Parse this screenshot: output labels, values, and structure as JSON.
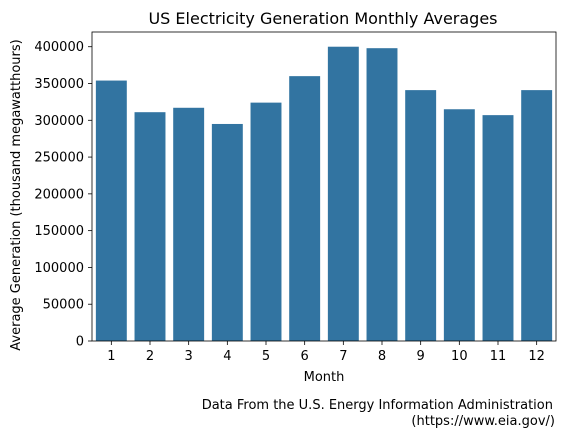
{
  "chart_data": {
    "type": "bar",
    "title": "US Electricity Generation Monthly Averages",
    "xlabel": "Month",
    "ylabel": "Average Generation (thousand megawatthours)",
    "categories": [
      "1",
      "2",
      "3",
      "4",
      "5",
      "6",
      "7",
      "8",
      "9",
      "10",
      "11",
      "12"
    ],
    "values": [
      354000,
      311000,
      317000,
      295000,
      324000,
      360000,
      400000,
      398000,
      341000,
      315000,
      307000,
      341000
    ],
    "ylim": [
      0,
      420000
    ],
    "yticks": [
      0,
      50000,
      100000,
      150000,
      200000,
      250000,
      300000,
      350000,
      400000
    ],
    "ytick_labels": [
      "0",
      "50000",
      "100000",
      "150000",
      "200000",
      "250000",
      "300000",
      "350000",
      "400000"
    ],
    "bar_color": "#3274a1",
    "grid": false,
    "legend": "none",
    "source_line1": "Data From the U.S. Energy Information Administration",
    "source_line2": "(https://www.eia.gov/)"
  }
}
